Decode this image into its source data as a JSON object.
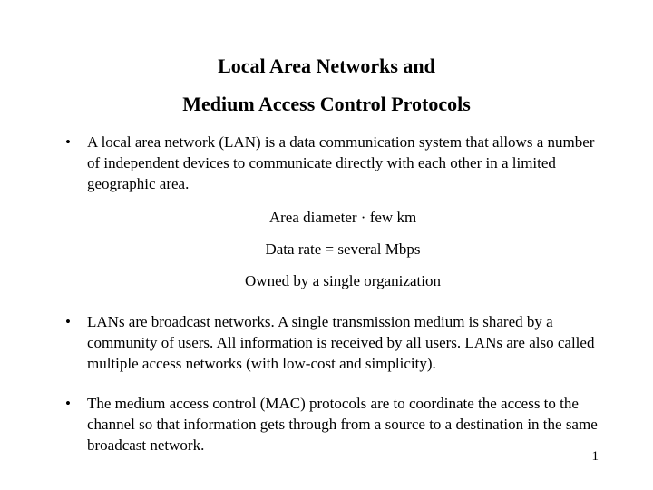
{
  "title": {
    "line1": "Local Area Networks and",
    "line2": "Medium Access Control Protocols"
  },
  "bullets": [
    {
      "text": "A local area network (LAN) is a data communication system that allows a number of independent devices to communicate directly with each other in a limited geographic area.",
      "centered": [
        "Area diameter · few km",
        "Data rate = several Mbps",
        "Owned by a single organization"
      ]
    },
    {
      "text": "LANs are broadcast networks. A single transmission medium is shared by a community of users. All information is received by all users. LANs are also called multiple access networks (with low-cost and simplicity)."
    },
    {
      "text": "The medium access control (MAC) protocols are to coordinate the access to the channel so that information gets through from a source to a destination in the same broadcast network."
    }
  ],
  "page_number": "1",
  "colors": {
    "background": "#ffffff",
    "text": "#000000"
  },
  "typography": {
    "title_fontsize": 22,
    "body_fontsize": 17,
    "font_family": "Times New Roman"
  }
}
